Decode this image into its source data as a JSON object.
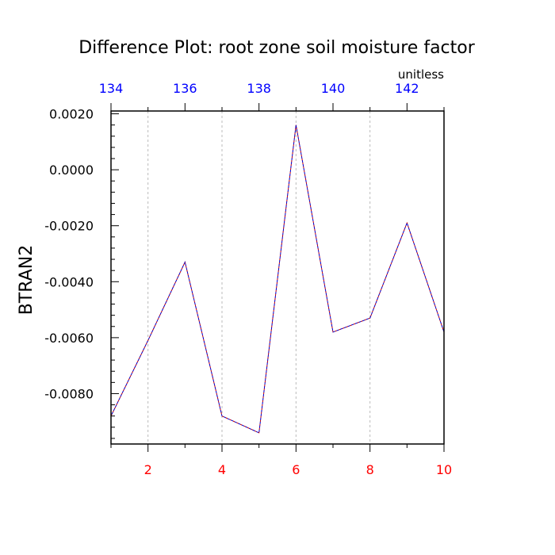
{
  "chart_data": {
    "type": "line",
    "title": "Difference Plot: root zone soil moisture factor",
    "units_label": "unitless",
    "ylabel": "BTRAN2",
    "xlabel": "",
    "bottom_axis": {
      "range": [
        1,
        10
      ],
      "ticks": [
        2,
        4,
        6,
        8,
        10
      ],
      "minor_ticks": [
        1,
        3,
        5,
        7,
        9
      ],
      "color": "#ff0000"
    },
    "top_axis": {
      "range": [
        134,
        143
      ],
      "ticks": [
        134,
        136,
        138,
        140,
        142
      ],
      "minor_ticks": [
        135,
        137,
        139,
        141,
        143
      ],
      "color": "#0000ff"
    },
    "y_axis": {
      "range": [
        -0.0098,
        0.0021
      ],
      "ticks": [
        0.002,
        0.0,
        -0.002,
        -0.004,
        -0.006,
        -0.008
      ],
      "tick_labels": [
        "0.0020",
        "0.0000",
        "-0.0020",
        "-0.0040",
        "-0.0060",
        "-0.0080"
      ]
    },
    "grid": "vertical-dashed",
    "series": [
      {
        "color": "#cc0000",
        "style": "dashed",
        "x": [
          1,
          2,
          3,
          4,
          5,
          6,
          7,
          8,
          9,
          10
        ],
        "values": [
          -0.0088,
          -0.0061,
          -0.0033,
          -0.0088,
          -0.0094,
          0.0016,
          -0.0058,
          -0.0053,
          -0.0019,
          -0.0058
        ]
      },
      {
        "color": "#0000cc",
        "style": "dashed",
        "x": [
          1,
          2,
          3,
          4,
          5,
          6,
          7,
          8,
          9,
          10
        ],
        "values": [
          -0.0088,
          -0.0061,
          -0.0033,
          -0.0088,
          -0.0094,
          0.0016,
          -0.0058,
          -0.0053,
          -0.0019,
          -0.0058
        ]
      }
    ]
  }
}
